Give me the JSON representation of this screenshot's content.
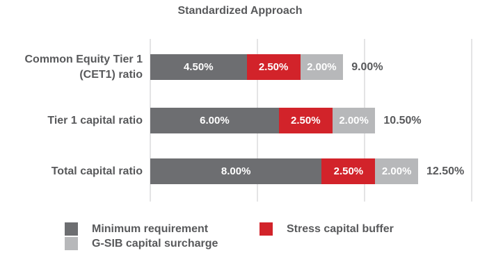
{
  "title": "Standardized Approach",
  "chart_data": {
    "type": "bar",
    "orientation": "horizontal",
    "stacked": true,
    "title": "Standardized Approach",
    "categories": [
      "Common Equity Tier 1 (CET1) ratio",
      "Tier 1 capital ratio",
      "Total capital ratio"
    ],
    "category_display": [
      "Common Equity Tier 1\n(CET1) ratio",
      "Tier 1 capital ratio",
      "Total capital ratio"
    ],
    "series": [
      {
        "name": "Minimum requirement",
        "color": "#6d6e71",
        "values": [
          4.5,
          6.0,
          8.0
        ],
        "labels": [
          "4.50%",
          "6.00%",
          "8.00%"
        ]
      },
      {
        "name": "Stress capital buffer",
        "color": "#d2232a",
        "values": [
          2.5,
          2.5,
          2.5
        ],
        "labels": [
          "2.50%",
          "2.50%",
          "2.50%"
        ]
      },
      {
        "name": "G-SIB capital surcharge",
        "color": "#b7b8ba",
        "values": [
          2.0,
          2.0,
          2.0
        ],
        "labels": [
          "2.00%",
          "2.00%",
          "2.00%"
        ]
      }
    ],
    "totals": [
      9.0,
      10.5,
      12.5
    ],
    "total_labels": [
      "9.00%",
      "10.50%",
      "12.50%"
    ],
    "xlabel": "",
    "ylabel": "",
    "xlim": [
      0,
      15.5
    ],
    "gridline_values": [
      0,
      5,
      10,
      15
    ],
    "grid": "vertical",
    "legend_position": "bottom"
  },
  "legend": {
    "items": [
      {
        "label": "Minimum requirement",
        "color": "#6d6e71"
      },
      {
        "label": "G-SIB capital surcharge",
        "color": "#b7b8ba"
      },
      {
        "label": "Stress capital buffer",
        "color": "#d2232a"
      }
    ]
  },
  "colors": {
    "bar_dark_gray": "#6d6e71",
    "bar_red": "#d2232a",
    "bar_light_gray": "#b7b8ba",
    "text": "#58595b",
    "gridline": "#e4e4e5",
    "background": "#ffffff"
  }
}
